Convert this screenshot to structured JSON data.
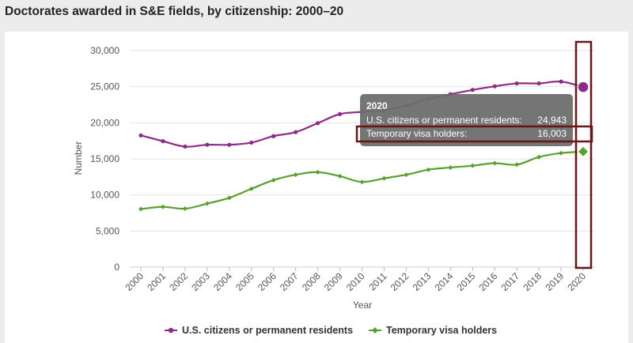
{
  "title": "Doctorates awarded in S&E fields, by citizenship: 2000–20",
  "chart_data": {
    "type": "line",
    "title": "Doctorates awarded in S&E fields, by citizenship: 2000–20",
    "xlabel": "Year",
    "ylabel": "Number",
    "categories": [
      "2000",
      "2001",
      "2002",
      "2003",
      "2004",
      "2005",
      "2006",
      "2007",
      "2008",
      "2009",
      "2010",
      "2011",
      "2012",
      "2013",
      "2014",
      "2015",
      "2016",
      "2017",
      "2018",
      "2019",
      "2020"
    ],
    "ylim": [
      0,
      30000
    ],
    "yticks": [
      "0",
      "5,000",
      "10,000",
      "15,000",
      "20,000",
      "25,000",
      "30,000"
    ],
    "grid": true,
    "legend_position": "bottom",
    "series": [
      {
        "name": "U.S. citizens or permanent residents",
        "color": "#8e2a8a",
        "values": [
          18250,
          17450,
          16700,
          16950,
          16950,
          17250,
          18150,
          18700,
          19950,
          21200,
          21500,
          21750,
          22400,
          23300,
          23950,
          24550,
          25050,
          25450,
          25450,
          25700,
          24943
        ]
      },
      {
        "name": "Temporary visa holders",
        "color": "#58a12f",
        "values": [
          8050,
          8350,
          8100,
          8800,
          9600,
          10850,
          12050,
          12800,
          13150,
          12600,
          11800,
          12300,
          12800,
          13500,
          13800,
          14050,
          14400,
          14200,
          15250,
          15800,
          16003
        ]
      }
    ],
    "tooltip": {
      "title": "2020",
      "rows": [
        {
          "label": "U.S. citizens or permanent residents:",
          "value": "24,943"
        },
        {
          "label": "Temporary visa holders:",
          "value": "16,003"
        }
      ]
    },
    "highlight_year": "2020"
  }
}
